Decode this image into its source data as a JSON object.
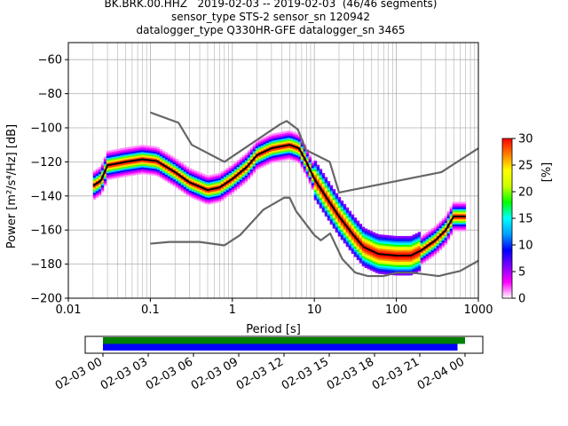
{
  "chart_data": {
    "type": "heatmap",
    "title_lines": [
      "BK.BRK.00.HHZ   2019-02-03 -- 2019-02-03  (46/46 segments)",
      "sensor_type STS-2 sensor_sn 120942",
      "datalogger_type Q330HR-GFE datalogger_sn 3465"
    ],
    "xlabel": "Period [s]",
    "ylabel": "Power [m²/s⁴/Hz] [dB]",
    "xscale": "log",
    "xlim": [
      0.01,
      1000
    ],
    "ylim": [
      -200,
      -50
    ],
    "x_ticks": [
      {
        "value": 0.01,
        "label": "0.01"
      },
      {
        "value": 0.1,
        "label": "0.1"
      },
      {
        "value": 1,
        "label": "1"
      },
      {
        "value": 10,
        "label": "10"
      },
      {
        "value": 100,
        "label": "100"
      },
      {
        "value": 1000,
        "label": "1000"
      }
    ],
    "y_ticks": [
      {
        "value": -60,
        "label": "−60"
      },
      {
        "value": -80,
        "label": "−80"
      },
      {
        "value": -100,
        "label": "−100"
      },
      {
        "value": -120,
        "label": "−120"
      },
      {
        "value": -140,
        "label": "−140"
      },
      {
        "value": -160,
        "label": "−160"
      },
      {
        "value": -180,
        "label": "−180"
      },
      {
        "value": -200,
        "label": "−200"
      }
    ],
    "grid": true,
    "colorbar": {
      "label": "[%]",
      "range": [
        0,
        30
      ],
      "ticks": [
        {
          "value": 0,
          "label": "0"
        },
        {
          "value": 5,
          "label": "5"
        },
        {
          "value": 10,
          "label": "10"
        },
        {
          "value": 15,
          "label": "15"
        },
        {
          "value": 20,
          "label": "20"
        },
        {
          "value": 25,
          "label": "25"
        },
        {
          "value": 30,
          "label": "30"
        }
      ],
      "colors": [
        "#ffffff",
        "#ff00ff",
        "#7f00ff",
        "#0000ff",
        "#00a0ff",
        "#00ffff",
        "#00ff00",
        "#ccff00",
        "#ffff00",
        "#ff8000",
        "#ff0000"
      ]
    },
    "series": [
      {
        "name": "nhnm",
        "color": "#666666",
        "points": [
          [
            0.1,
            -91
          ],
          [
            0.22,
            -97
          ],
          [
            0.32,
            -110
          ],
          [
            0.8,
            -120
          ],
          [
            3.8,
            -98
          ],
          [
            4.6,
            -96
          ],
          [
            6.3,
            -101
          ],
          [
            7.9,
            -113
          ],
          [
            15.4,
            -120
          ],
          [
            20,
            -138
          ],
          [
            354.8,
            -126
          ],
          [
            1000,
            -112
          ]
        ]
      },
      {
        "name": "nlnm",
        "color": "#666666",
        "points": [
          [
            0.1,
            -168
          ],
          [
            0.17,
            -167
          ],
          [
            0.4,
            -167
          ],
          [
            0.8,
            -169
          ],
          [
            1.24,
            -163
          ],
          [
            2.4,
            -148
          ],
          [
            4.3,
            -141
          ],
          [
            5,
            -141
          ],
          [
            6,
            -149
          ],
          [
            10,
            -163
          ],
          [
            12,
            -166
          ],
          [
            15.6,
            -162
          ],
          [
            21.9,
            -177
          ],
          [
            31.6,
            -185
          ],
          [
            45,
            -187
          ],
          [
            70,
            -187
          ],
          [
            101,
            -185
          ],
          [
            154,
            -185
          ],
          [
            328,
            -187
          ],
          [
            600,
            -184
          ],
          [
            1000,
            -178
          ]
        ]
      },
      {
        "name": "mode",
        "color": "#000000",
        "points": [
          [
            0.02,
            -134
          ],
          [
            0.025,
            -131
          ],
          [
            0.03,
            -122
          ],
          [
            0.05,
            -120
          ],
          [
            0.08,
            -118.5
          ],
          [
            0.12,
            -119.5
          ],
          [
            0.2,
            -126
          ],
          [
            0.3,
            -132
          ],
          [
            0.5,
            -136.5
          ],
          [
            0.7,
            -135
          ],
          [
            1,
            -130
          ],
          [
            1.5,
            -123
          ],
          [
            2,
            -116
          ],
          [
            3,
            -112
          ],
          [
            5,
            -110
          ],
          [
            6.5,
            -112
          ],
          [
            8,
            -120
          ],
          [
            10,
            -130
          ],
          [
            15,
            -143
          ],
          [
            20,
            -152
          ],
          [
            30,
            -163
          ],
          [
            40,
            -170
          ],
          [
            60,
            -174
          ],
          [
            100,
            -175
          ],
          [
            150,
            -175
          ],
          [
            200,
            -172
          ],
          [
            300,
            -166
          ],
          [
            400,
            -160
          ],
          [
            500,
            -152
          ],
          [
            700,
            -152
          ]
        ]
      }
    ],
    "time_axis": {
      "range": [
        "2019-02-03 00:00",
        "2019-02-04 02:00"
      ],
      "ticks": [
        "02-03 00",
        "02-03 03",
        "02-03 06",
        "02-03 09",
        "02-03 12",
        "02-03 15",
        "02-03 18",
        "02-03 21",
        "02-04 00"
      ],
      "bars": [
        {
          "name": "data",
          "color": "#008000",
          "start_hour": 0,
          "end_hour": 24.0
        },
        {
          "name": "psd segments",
          "color": "#0000ff",
          "start_hour": 0,
          "end_hour": 23.5
        }
      ]
    }
  }
}
